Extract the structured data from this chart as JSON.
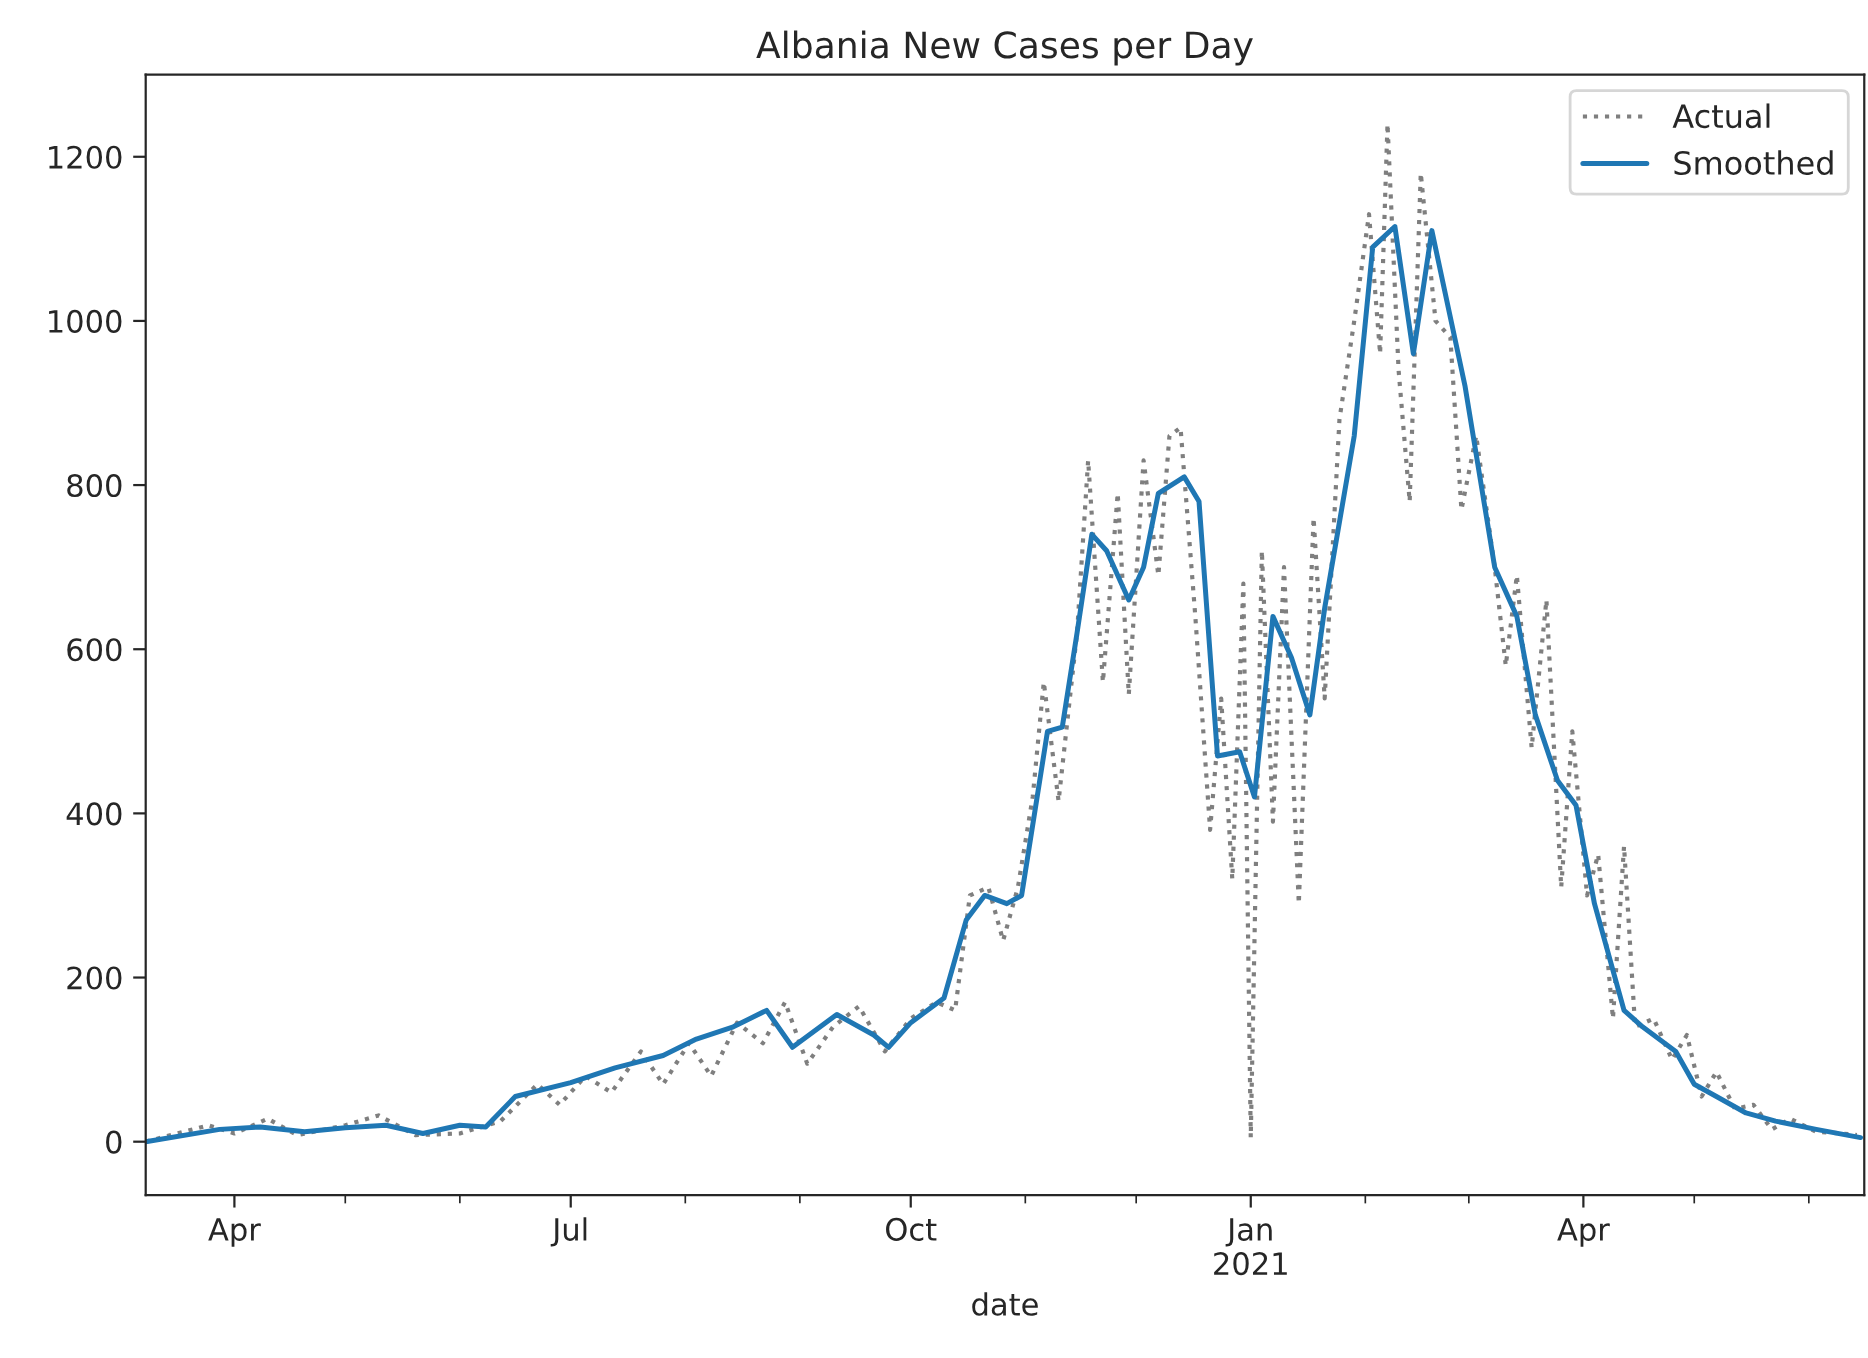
{
  "chart_data": {
    "type": "line",
    "title": "Albania New Cases per Day",
    "xlabel": "date",
    "series": [
      {
        "name": "Actual",
        "color": "#7f7f7f",
        "line_style": "dotted",
        "x": [
          "2020-03-08",
          "2020-03-25",
          "2020-04-01",
          "2020-04-10",
          "2020-04-18",
          "2020-05-01",
          "2020-05-10",
          "2020-05-20",
          "2020-06-01",
          "2020-06-12",
          "2020-06-22",
          "2020-06-28",
          "2020-07-05",
          "2020-07-12",
          "2020-07-20",
          "2020-07-26",
          "2020-08-02",
          "2020-08-08",
          "2020-08-15",
          "2020-08-22",
          "2020-08-28",
          "2020-09-03",
          "2020-09-10",
          "2020-09-17",
          "2020-09-24",
          "2020-10-01",
          "2020-10-08",
          "2020-10-13",
          "2020-10-17",
          "2020-10-22",
          "2020-10-26",
          "2020-10-30",
          "2020-11-03",
          "2020-11-06",
          "2020-11-10",
          "2020-11-15",
          "2020-11-18",
          "2020-11-22",
          "2020-11-26",
          "2020-11-29",
          "2020-12-03",
          "2020-12-07",
          "2020-12-10",
          "2020-12-13",
          "2020-12-17",
          "2020-12-21",
          "2020-12-24",
          "2020-12-27",
          "2020-12-30",
          "2021-01-01",
          "2021-01-04",
          "2021-01-07",
          "2021-01-10",
          "2021-01-14",
          "2021-01-18",
          "2021-01-21",
          "2021-01-25",
          "2021-01-29",
          "2021-02-02",
          "2021-02-05",
          "2021-02-07",
          "2021-02-10",
          "2021-02-13",
          "2021-02-16",
          "2021-02-20",
          "2021-02-24",
          "2021-02-27",
          "2021-03-03",
          "2021-03-08",
          "2021-03-11",
          "2021-03-14",
          "2021-03-18",
          "2021-03-22",
          "2021-03-26",
          "2021-03-29",
          "2021-04-02",
          "2021-04-05",
          "2021-04-09",
          "2021-04-12",
          "2021-04-15",
          "2021-04-20",
          "2021-04-25",
          "2021-04-29",
          "2021-05-03",
          "2021-05-07",
          "2021-05-12",
          "2021-05-17",
          "2021-05-22",
          "2021-05-27",
          "2021-06-03",
          "2021-06-10",
          "2021-06-14"
        ],
        "values": [
          0,
          20,
          10,
          28,
          8,
          20,
          32,
          8,
          10,
          25,
          70,
          45,
          80,
          60,
          110,
          70,
          120,
          80,
          145,
          120,
          170,
          95,
          140,
          165,
          110,
          150,
          170,
          160,
          300,
          310,
          245,
          310,
          420,
          560,
          415,
          620,
          830,
          560,
          790,
          545,
          830,
          690,
          860,
          870,
          640,
          380,
          540,
          320,
          680,
          5,
          720,
          390,
          700,
          290,
          760,
          540,
          880,
          1000,
          1130,
          960,
          1240,
          940,
          780,
          1180,
          1000,
          980,
          770,
          860,
          700,
          580,
          690,
          480,
          660,
          310,
          500,
          300,
          350,
          150,
          360,
          140,
          150,
          100,
          130,
          55,
          85,
          40,
          45,
          15,
          28,
          12,
          10,
          8
        ]
      },
      {
        "name": "Smoothed",
        "color": "#1f77b4",
        "line_style": "solid",
        "x": [
          "2020-03-08",
          "2020-03-28",
          "2020-04-08",
          "2020-04-20",
          "2020-05-01",
          "2020-05-12",
          "2020-05-22",
          "2020-06-01",
          "2020-06-08",
          "2020-06-16",
          "2020-07-01",
          "2020-07-13",
          "2020-07-26",
          "2020-08-04",
          "2020-08-14",
          "2020-08-23",
          "2020-08-30",
          "2020-09-11",
          "2020-09-21",
          "2020-09-25",
          "2020-10-01",
          "2020-10-10",
          "2020-10-16",
          "2020-10-21",
          "2020-10-27",
          "2020-10-31",
          "2020-11-07",
          "2020-11-11",
          "2020-11-15",
          "2020-11-19",
          "2020-11-23",
          "2020-11-29",
          "2020-12-03",
          "2020-12-07",
          "2020-12-14",
          "2020-12-18",
          "2020-12-23",
          "2020-12-29",
          "2021-01-02",
          "2021-01-07",
          "2021-01-12",
          "2021-01-17",
          "2021-01-21",
          "2021-01-29",
          "2021-02-03",
          "2021-02-09",
          "2021-02-14",
          "2021-02-19",
          "2021-02-28",
          "2021-03-08",
          "2021-03-14",
          "2021-03-19",
          "2021-03-25",
          "2021-03-30",
          "2021-04-04",
          "2021-04-12",
          "2021-04-17",
          "2021-04-26",
          "2021-05-01",
          "2021-05-07",
          "2021-05-15",
          "2021-05-23",
          "2021-06-03",
          "2021-06-15"
        ],
        "values": [
          0,
          15,
          18,
          12,
          17,
          20,
          10,
          20,
          18,
          55,
          72,
          90,
          105,
          125,
          140,
          160,
          115,
          155,
          130,
          115,
          145,
          175,
          270,
          300,
          290,
          300,
          500,
          505,
          620,
          740,
          720,
          660,
          700,
          790,
          810,
          780,
          470,
          475,
          420,
          640,
          590,
          520,
          650,
          860,
          1090,
          1115,
          960,
          1110,
          920,
          700,
          640,
          520,
          440,
          410,
          290,
          160,
          140,
          110,
          70,
          55,
          35,
          25,
          15,
          5
        ]
      }
    ],
    "xlim": [
      "2020-03-08",
      "2021-06-16"
    ],
    "xticks": [
      {
        "value": "2020-04-01",
        "label": "Apr"
      },
      {
        "value": "2020-05-01",
        "label": null
      },
      {
        "value": "2020-06-01",
        "label": null
      },
      {
        "value": "2020-07-01",
        "label": "Jul"
      },
      {
        "value": "2020-08-01",
        "label": null
      },
      {
        "value": "2020-09-01",
        "label": null
      },
      {
        "value": "2020-10-01",
        "label": "Oct"
      },
      {
        "value": "2020-11-01",
        "label": null
      },
      {
        "value": "2020-12-01",
        "label": null
      },
      {
        "value": "2021-01-01",
        "label": "Jan\n2021"
      },
      {
        "value": "2021-02-01",
        "label": null
      },
      {
        "value": "2021-03-01",
        "label": null
      },
      {
        "value": "2021-04-01",
        "label": "Apr"
      },
      {
        "value": "2021-05-01",
        "label": null
      },
      {
        "value": "2021-06-01",
        "label": null
      }
    ],
    "ylim": [
      -65,
      1300
    ],
    "yticks": [
      0,
      200,
      400,
      600,
      800,
      1000,
      1200
    ],
    "grid": false,
    "legend": "top right"
  }
}
